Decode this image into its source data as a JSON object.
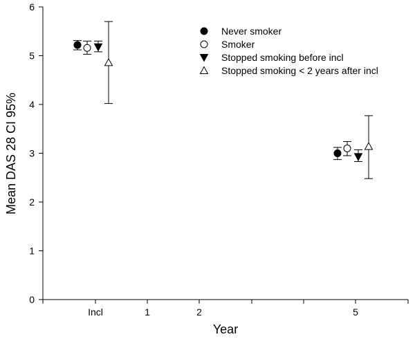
{
  "chart_data": {
    "type": "scatter",
    "title": "",
    "xlabel": "Year",
    "ylabel": "Mean DAS 28 CI 95%",
    "ylim": [
      0,
      6
    ],
    "yticks": [
      "0",
      "1",
      "2",
      "3",
      "4",
      "5",
      "6"
    ],
    "categories": [
      "Incl",
      "1",
      "2",
      "5"
    ],
    "grid": false,
    "legend_position": "top-right",
    "error_bars": true,
    "series": [
      {
        "name": "Never smoker",
        "marker": "filled-circle",
        "points": [
          {
            "x": "Incl",
            "y": 5.22,
            "lower": 5.12,
            "upper": 5.31
          },
          {
            "x": "5",
            "y": 3.0,
            "lower": 2.87,
            "upper": 3.12
          }
        ]
      },
      {
        "name": "Smoker",
        "marker": "open-circle",
        "points": [
          {
            "x": "Incl",
            "y": 5.16,
            "lower": 5.03,
            "upper": 5.3
          },
          {
            "x": "5",
            "y": 3.1,
            "lower": 2.95,
            "upper": 3.24
          }
        ]
      },
      {
        "name": "Stopped smoking before incl",
        "marker": "filled-triangle-down",
        "points": [
          {
            "x": "Incl",
            "y": 5.18,
            "lower": 5.08,
            "upper": 5.3
          },
          {
            "x": "5",
            "y": 2.93,
            "lower": 2.83,
            "upper": 3.07
          }
        ]
      },
      {
        "name": "Stopped smoking < 2 years after incl",
        "marker": "open-triangle-up",
        "points": [
          {
            "x": "Incl",
            "y": 4.86,
            "lower": 4.02,
            "upper": 5.7
          },
          {
            "x": "5",
            "y": 3.14,
            "lower": 2.48,
            "upper": 3.77
          }
        ]
      }
    ]
  }
}
